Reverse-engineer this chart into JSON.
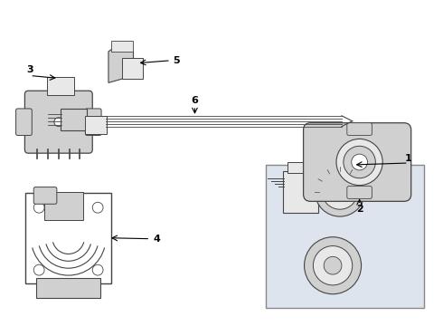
{
  "background_color": "#ffffff",
  "fig_width": 4.9,
  "fig_height": 3.6,
  "dpi": 100,
  "line_color": "#444444",
  "text_color": "#000000",
  "light_fill": "#e8e8e8",
  "mid_fill": "#d0d0d0",
  "box_fill": "#dde4ee"
}
